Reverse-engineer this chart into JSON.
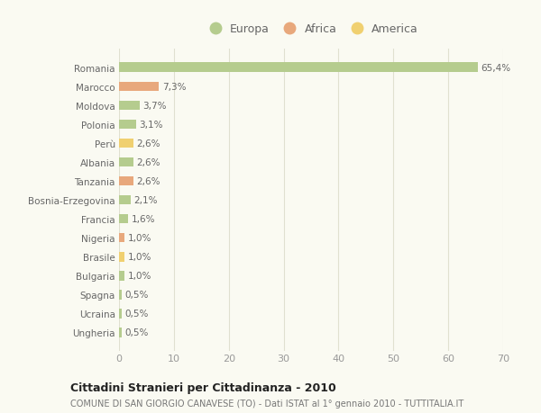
{
  "categories": [
    "Romania",
    "Marocco",
    "Moldova",
    "Polonia",
    "Perù",
    "Albania",
    "Tanzania",
    "Bosnia-Erzegovina",
    "Francia",
    "Nigeria",
    "Brasile",
    "Bulgaria",
    "Spagna",
    "Ucraina",
    "Ungheria"
  ],
  "values": [
    65.4,
    7.3,
    3.7,
    3.1,
    2.6,
    2.6,
    2.6,
    2.1,
    1.6,
    1.0,
    1.0,
    1.0,
    0.5,
    0.5,
    0.5
  ],
  "labels": [
    "65,4%",
    "7,3%",
    "3,7%",
    "3,1%",
    "2,6%",
    "2,6%",
    "2,6%",
    "2,1%",
    "1,6%",
    "1,0%",
    "1,0%",
    "1,0%",
    "0,5%",
    "0,5%",
    "0,5%"
  ],
  "colors": [
    "#b5cc8e",
    "#e8a87c",
    "#b5cc8e",
    "#b5cc8e",
    "#f0d070",
    "#b5cc8e",
    "#e8a87c",
    "#b5cc8e",
    "#b5cc8e",
    "#e8a87c",
    "#f0d070",
    "#b5cc8e",
    "#b5cc8e",
    "#b5cc8e",
    "#b5cc8e"
  ],
  "legend_labels": [
    "Europa",
    "Africa",
    "America"
  ],
  "legend_colors": [
    "#b5cc8e",
    "#e8a87c",
    "#f0d070"
  ],
  "title": "Cittadini Stranieri per Cittadinanza - 2010",
  "subtitle": "COMUNE DI SAN GIORGIO CANAVESE (TO) - Dati ISTAT al 1° gennaio 2010 - TUTTITALIA.IT",
  "xlim": [
    0,
    70
  ],
  "xticks": [
    0,
    10,
    20,
    30,
    40,
    50,
    60,
    70
  ],
  "background_color": "#fafaf2",
  "plot_background": "#fafaf2",
  "grid_color": "#e0e0d0"
}
